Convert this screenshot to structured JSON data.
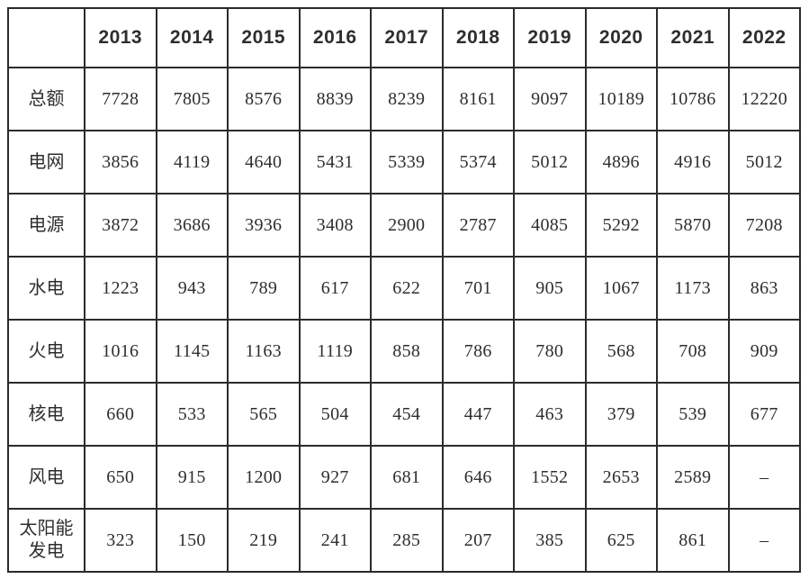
{
  "chart_data": {
    "type": "table",
    "title": "",
    "columns": [
      "",
      "2013",
      "2014",
      "2015",
      "2016",
      "2017",
      "2018",
      "2019",
      "2020",
      "2021",
      "2022"
    ],
    "rows": [
      {
        "label": "总额",
        "values": [
          "7728",
          "7805",
          "8576",
          "8839",
          "8239",
          "8161",
          "9097",
          "10189",
          "10786",
          "12220"
        ]
      },
      {
        "label": "电网",
        "values": [
          "3856",
          "4119",
          "4640",
          "5431",
          "5339",
          "5374",
          "5012",
          "4896",
          "4916",
          "5012"
        ]
      },
      {
        "label": "电源",
        "values": [
          "3872",
          "3686",
          "3936",
          "3408",
          "2900",
          "2787",
          "4085",
          "5292",
          "5870",
          "7208"
        ]
      },
      {
        "label": "水电",
        "values": [
          "1223",
          "943",
          "789",
          "617",
          "622",
          "701",
          "905",
          "1067",
          "1173",
          "863"
        ]
      },
      {
        "label": "火电",
        "values": [
          "1016",
          "1145",
          "1163",
          "1119",
          "858",
          "786",
          "780",
          "568",
          "708",
          "909"
        ]
      },
      {
        "label": "核电",
        "values": [
          "660",
          "533",
          "565",
          "504",
          "454",
          "447",
          "463",
          "379",
          "539",
          "677"
        ]
      },
      {
        "label": "风电",
        "values": [
          "650",
          "915",
          "1200",
          "927",
          "681",
          "646",
          "1552",
          "2653",
          "2589",
          "–"
        ]
      },
      {
        "label": "太阳能\n发电",
        "values": [
          "323",
          "150",
          "219",
          "241",
          "285",
          "207",
          "385",
          "625",
          "861",
          "–"
        ]
      }
    ],
    "layout": {
      "grid": true,
      "border_color": "#2b2b2b",
      "background": "#ffffff"
    }
  }
}
